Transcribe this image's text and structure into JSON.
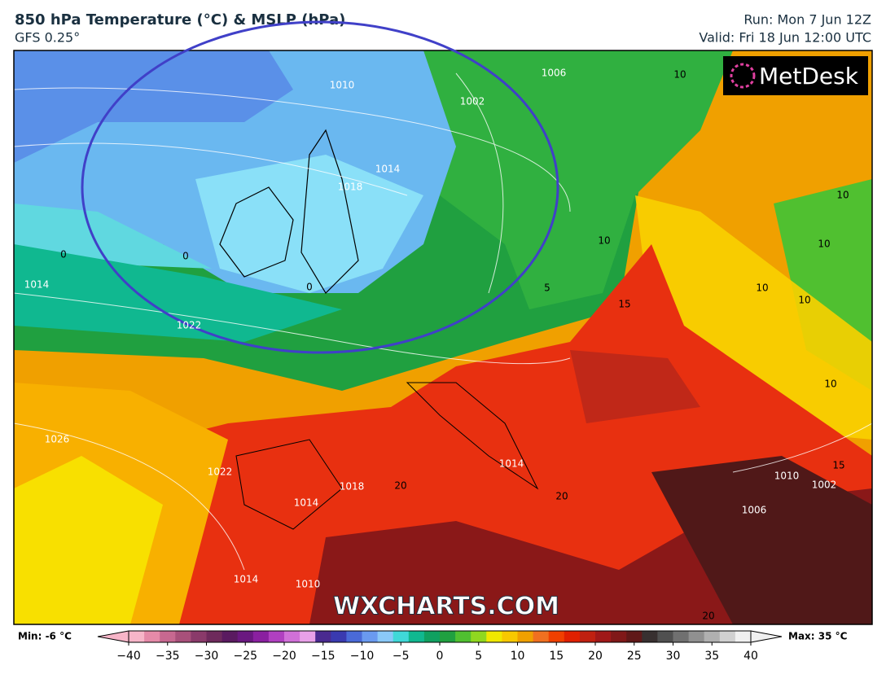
{
  "header": {
    "title": "850 hPa Temperature (°C) & MSLP (hPa)",
    "subtitle": "GFS 0.25°",
    "run": "Run: Mon 7 Jun 12Z",
    "valid": "Valid: Fri 18 Jun 12:00 UTC"
  },
  "map": {
    "logo": "MetDesk",
    "watermark": "WXCHARTS.COM",
    "highlight_color": "#4040c8",
    "contour_labels": [
      "1010",
      "1014",
      "1018",
      "1002",
      "1006",
      "10",
      "10",
      "10",
      "10",
      "10",
      "10",
      "10",
      "0",
      "0",
      "0",
      "5",
      "15",
      "1014",
      "1022",
      "1026",
      "1022",
      "1014",
      "1018",
      "20",
      "20",
      "1014",
      "1010",
      "1002",
      "1006",
      "15",
      "1014",
      "1010",
      "20"
    ]
  },
  "colorbar": {
    "min_label": "Min: -6 °C",
    "max_label": "Max: 35 °C",
    "range": [
      -40,
      40
    ],
    "colors": [
      "#f7b5c8",
      "#e58aa8",
      "#c76890",
      "#a8507a",
      "#8a3a6a",
      "#6e2a5c",
      "#5a1a60",
      "#6a1880",
      "#8a20a0",
      "#b040c0",
      "#d070d8",
      "#e8a0e8",
      "#4a2a90",
      "#3a3ab0",
      "#4a6ad8",
      "#6a9af0",
      "#8ac8f8",
      "#40d8d8",
      "#10b890",
      "#10a060",
      "#20a040",
      "#50c030",
      "#90d820",
      "#f0e800",
      "#f8c800",
      "#f0a000",
      "#f07020",
      "#f04000",
      "#e02000",
      "#c02010",
      "#a01818",
      "#801818",
      "#601818",
      "#383030",
      "#505050",
      "#707070",
      "#909090",
      "#b0b0b0",
      "#d0d0d0",
      "#f0f0f0"
    ],
    "ticks": [
      {
        "value": -40,
        "label": "−40"
      },
      {
        "value": -35,
        "label": "−35"
      },
      {
        "value": -30,
        "label": "−30"
      },
      {
        "value": -25,
        "label": "−25"
      },
      {
        "value": -20,
        "label": "−20"
      },
      {
        "value": -15,
        "label": "−15"
      },
      {
        "value": -10,
        "label": "−10"
      },
      {
        "value": -5,
        "label": "−5"
      },
      0,
      5,
      10,
      15,
      20,
      25,
      30,
      35,
      40
    ]
  }
}
